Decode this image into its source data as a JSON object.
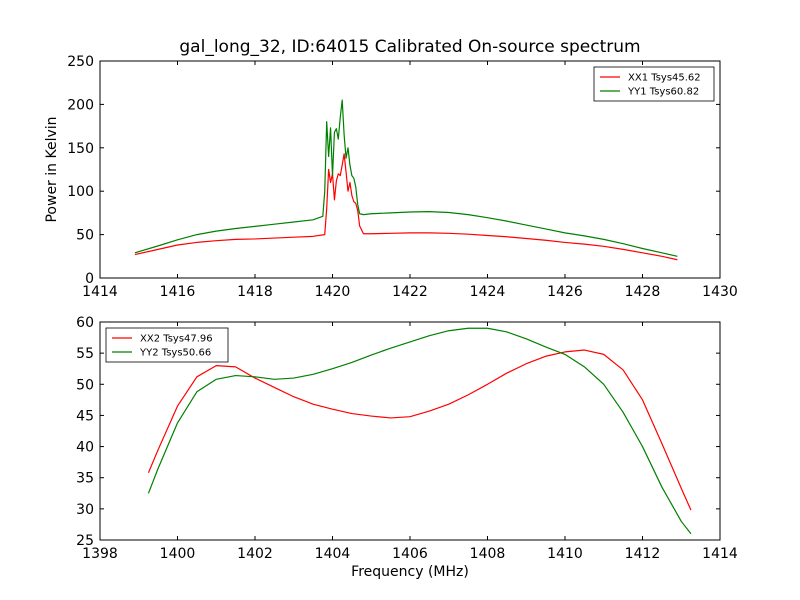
{
  "figure": {
    "title": "gal_long_32, ID:64015 Calibrated On-source spectrum",
    "xlabel": "Frequency (MHz)"
  },
  "chart_data": [
    {
      "type": "line",
      "title": "gal_long_32, ID:64015 Calibrated On-source spectrum",
      "xlabel": "",
      "ylabel": "Power in Kelvin",
      "xlim": [
        1414,
        1430
      ],
      "ylim": [
        0,
        250
      ],
      "xticks": [
        1414,
        1416,
        1418,
        1420,
        1422,
        1424,
        1426,
        1428,
        1430
      ],
      "yticks": [
        0,
        50,
        100,
        150,
        200,
        250
      ],
      "grid": false,
      "legend_position": "top-right",
      "series": [
        {
          "name": "XX1 Tsys45.62",
          "color": "#ff0000",
          "x": [
            1414.9,
            1415.5,
            1416,
            1416.5,
            1417,
            1417.5,
            1418,
            1418.5,
            1419,
            1419.5,
            1419.8,
            1419.85,
            1419.9,
            1419.95,
            1420.0,
            1420.05,
            1420.1,
            1420.15,
            1420.2,
            1420.25,
            1420.3,
            1420.35,
            1420.4,
            1420.45,
            1420.5,
            1420.55,
            1420.6,
            1420.65,
            1420.7,
            1420.8,
            1421,
            1421.5,
            1422,
            1422.5,
            1423,
            1423.5,
            1424,
            1424.5,
            1425,
            1425.5,
            1426,
            1426.5,
            1427,
            1427.5,
            1428,
            1428.5,
            1428.9
          ],
          "y": [
            27,
            33,
            38,
            41,
            43,
            44.5,
            45,
            46,
            47,
            48,
            50,
            80,
            125,
            110,
            120,
            90,
            112,
            120,
            118,
            130,
            143,
            122,
            100,
            110,
            95,
            88,
            86,
            78,
            60,
            51,
            51,
            51.5,
            52,
            52,
            51.5,
            50.5,
            49,
            47.5,
            45.5,
            43.5,
            41,
            39,
            36.5,
            33,
            29,
            25,
            21
          ]
        },
        {
          "name": "YY1 Tsys60.82",
          "color": "#008000",
          "x": [
            1414.9,
            1415.5,
            1416,
            1416.5,
            1417,
            1417.5,
            1418,
            1418.5,
            1419,
            1419.5,
            1419.75,
            1419.8,
            1419.85,
            1419.9,
            1419.95,
            1420.0,
            1420.05,
            1420.1,
            1420.15,
            1420.2,
            1420.25,
            1420.3,
            1420.35,
            1420.4,
            1420.45,
            1420.5,
            1420.55,
            1420.6,
            1420.65,
            1420.7,
            1420.8,
            1421,
            1421.5,
            1422,
            1422.5,
            1423,
            1423.5,
            1424,
            1424.5,
            1425,
            1425.5,
            1426,
            1426.5,
            1427,
            1427.5,
            1428,
            1428.5,
            1428.9
          ],
          "y": [
            29,
            37,
            44,
            50,
            54,
            57,
            59.5,
            62,
            64.5,
            67,
            71,
            100,
            180,
            140,
            173,
            118,
            168,
            172,
            160,
            185,
            205,
            165,
            138,
            150,
            130,
            118,
            115,
            105,
            85,
            74,
            73,
            74,
            75,
            76,
            76.5,
            75.5,
            73,
            69.5,
            65.5,
            61,
            56.5,
            52,
            48.5,
            44.5,
            39.5,
            34,
            29,
            25
          ]
        }
      ]
    },
    {
      "type": "line",
      "title": "",
      "xlabel": "Frequency (MHz)",
      "ylabel": "",
      "xlim": [
        1398,
        1414
      ],
      "ylim": [
        25,
        60
      ],
      "xticks": [
        1398,
        1400,
        1402,
        1404,
        1406,
        1408,
        1410,
        1412,
        1414
      ],
      "yticks": [
        25,
        30,
        35,
        40,
        45,
        50,
        55,
        60
      ],
      "grid": false,
      "legend_position": "top-left",
      "series": [
        {
          "name": "XX2 Tsys47.96",
          "color": "#ff0000",
          "x": [
            1399.25,
            1399.5,
            1400,
            1400.5,
            1401,
            1401.5,
            1402,
            1402.5,
            1403,
            1403.5,
            1404,
            1404.5,
            1405,
            1405.5,
            1406,
            1406.5,
            1407,
            1407.5,
            1408,
            1408.5,
            1409,
            1409.5,
            1410,
            1410.5,
            1411,
            1411.5,
            1412,
            1412.5,
            1413,
            1413.25
          ],
          "y": [
            35.8,
            39.5,
            46.5,
            51.2,
            53,
            52.8,
            51,
            49.5,
            48,
            46.8,
            46,
            45.3,
            44.9,
            44.6,
            44.8,
            45.7,
            46.8,
            48.3,
            50,
            51.8,
            53.3,
            54.5,
            55.2,
            55.5,
            54.8,
            52.3,
            47.5,
            40.5,
            33.3,
            29.8
          ]
        },
        {
          "name": "YY2 Tsys50.66",
          "color": "#008000",
          "x": [
            1399.25,
            1399.5,
            1400,
            1400.5,
            1401,
            1401.5,
            1402,
            1402.5,
            1403,
            1403.5,
            1404,
            1404.5,
            1405,
            1405.5,
            1406,
            1406.5,
            1407,
            1407.5,
            1408,
            1408.5,
            1409,
            1409.5,
            1410,
            1410.5,
            1411,
            1411.5,
            1412,
            1412.5,
            1413,
            1413.25
          ],
          "y": [
            32.5,
            36.5,
            43.8,
            48.8,
            50.8,
            51.4,
            51.2,
            50.8,
            51,
            51.6,
            52.5,
            53.5,
            54.7,
            55.8,
            56.8,
            57.8,
            58.6,
            59,
            59,
            58.4,
            57.3,
            56,
            54.8,
            52.8,
            50,
            45.5,
            40,
            33.5,
            28,
            26
          ]
        }
      ]
    }
  ]
}
